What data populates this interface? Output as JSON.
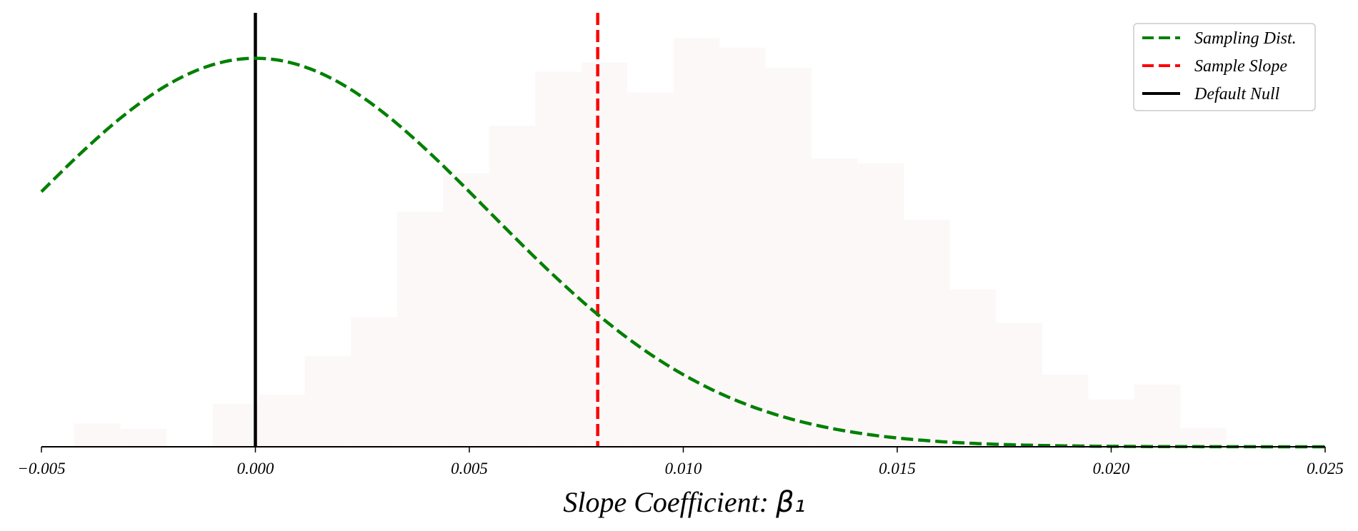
{
  "chart_data": {
    "type": "histogram_with_curve",
    "xlabel": "Slope Coefficient: ",
    "xlabel_symbol": "β₁",
    "xlim": [
      -0.005,
      0.025
    ],
    "x_ticks": [
      {
        "value": -0.005,
        "label": "−0.005"
      },
      {
        "value": 0.0,
        "label": "0.000"
      },
      {
        "value": 0.005,
        "label": "0.005"
      },
      {
        "value": 0.01,
        "label": "0.010"
      },
      {
        "value": 0.015,
        "label": "0.015"
      },
      {
        "value": 0.02,
        "label": "0.020"
      },
      {
        "value": 0.025,
        "label": "0.025"
      }
    ],
    "y_axis_visible": false,
    "grid": false,
    "histogram": {
      "color": "#fcf8f8",
      "bin_width": 0.001077,
      "bins": [
        {
          "x0": -0.00423,
          "height": 0.057
        },
        {
          "x0": -0.003153,
          "height": 0.044
        },
        {
          "x0": -0.002076,
          "height": 0.0
        },
        {
          "x0": -0.000999,
          "height": 0.105
        },
        {
          "x0": 7.8e-05,
          "height": 0.128
        },
        {
          "x0": 0.001155,
          "height": 0.222
        },
        {
          "x0": 0.002232,
          "height": 0.317
        },
        {
          "x0": 0.003309,
          "height": 0.575
        },
        {
          "x0": 0.004386,
          "height": 0.668
        },
        {
          "x0": 0.005463,
          "height": 0.785
        },
        {
          "x0": 0.00654,
          "height": 0.917
        },
        {
          "x0": 0.007617,
          "height": 0.94
        },
        {
          "x0": 0.008694,
          "height": 0.867
        },
        {
          "x0": 0.009771,
          "height": 1.0
        },
        {
          "x0": 0.010848,
          "height": 0.976
        },
        {
          "x0": 0.011925,
          "height": 0.927
        },
        {
          "x0": 0.013002,
          "height": 0.705
        },
        {
          "x0": 0.014079,
          "height": 0.693
        },
        {
          "x0": 0.015156,
          "height": 0.555
        },
        {
          "x0": 0.016233,
          "height": 0.385
        },
        {
          "x0": 0.01731,
          "height": 0.303
        },
        {
          "x0": 0.018387,
          "height": 0.176
        },
        {
          "x0": 0.019464,
          "height": 0.116
        },
        {
          "x0": 0.020541,
          "height": 0.152
        },
        {
          "x0": 0.021618,
          "height": 0.046
        }
      ]
    },
    "sampling_curve": {
      "name": "Sampling Dist.",
      "mean": 0.0,
      "sd": 0.00545,
      "peak_rel": 0.95,
      "color": "#008000",
      "style": "dashed"
    },
    "sample_slope": {
      "name": "Sample Slope",
      "x": 0.008,
      "color": "#ff0000",
      "style": "dashed"
    },
    "default_null": {
      "name": "Default Null",
      "x": 0.0,
      "color": "#000000",
      "style": "solid"
    },
    "legend": {
      "position": "top-right",
      "entries": [
        {
          "label": "Sampling Dist.",
          "color": "#008000",
          "dashed": true
        },
        {
          "label": "Sample Slope",
          "color": "#ff0000",
          "dashed": true
        },
        {
          "label": "Default Null",
          "color": "#000000",
          "dashed": false
        }
      ]
    }
  }
}
